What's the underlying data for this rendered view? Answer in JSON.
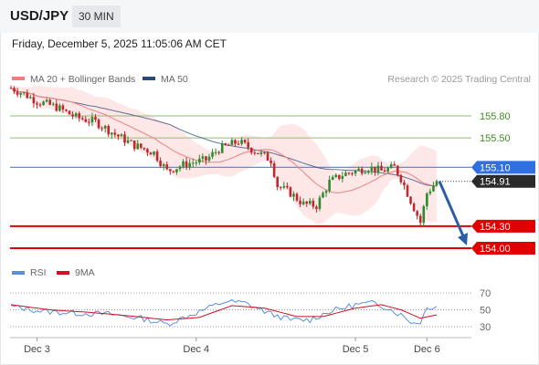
{
  "header": {
    "pair": "USD/JPY",
    "timeframe": "30 MIN"
  },
  "datetime": "Friday, December 5, 2025 11:05:06 AM CET",
  "legend": {
    "bb_label": "MA 20 + Bollinger Bands",
    "ma50_label": "MA 50",
    "credit": "Research © 2025 Trading Central",
    "rsi_label": "RSI",
    "rsi_ma_label": "9MA"
  },
  "colors": {
    "candle_up": "#2e8b2e",
    "candle_down": "#c0282d",
    "ma20": "#f08080",
    "band_fill": "#fde3e3",
    "ma50": "#2a4a7b",
    "resistance": "#8dc26a",
    "support": "#e00000",
    "current": "#5b8ee0",
    "arrow": "#2b5da8",
    "price_tag": "#2b2b2b",
    "rsi": "#5b8ee0",
    "rsi_ma": "#cc1122"
  },
  "chart_data": {
    "type": "candlestick",
    "ylim": [
      153.6,
      156.5
    ],
    "y_grid_labels": [],
    "levels": [
      {
        "value": 155.8,
        "label": "155.80",
        "kind": "resistance"
      },
      {
        "value": 155.5,
        "label": "155.50",
        "kind": "resistance"
      },
      {
        "value": 155.1,
        "label": "155.10",
        "kind": "pivot"
      },
      {
        "value": 154.91,
        "label": "154.91",
        "kind": "current"
      },
      {
        "value": 154.3,
        "label": "154.30",
        "kind": "support"
      },
      {
        "value": 154.0,
        "label": "154.00",
        "kind": "support"
      }
    ],
    "x_labels": [
      "Dec 3",
      "Dec 4",
      "Dec 5",
      "Dec 6"
    ],
    "x_label_index": [
      8,
      57,
      106,
      128
    ],
    "path_keypoints": [
      [
        0,
        156.18
      ],
      [
        4,
        156.1
      ],
      [
        8,
        156.0
      ],
      [
        14,
        155.92
      ],
      [
        20,
        155.78
      ],
      [
        26,
        155.72
      ],
      [
        32,
        155.55
      ],
      [
        38,
        155.4
      ],
      [
        44,
        155.3
      ],
      [
        48,
        155.05
      ],
      [
        54,
        155.15
      ],
      [
        60,
        155.2
      ],
      [
        64,
        155.35
      ],
      [
        70,
        155.45
      ],
      [
        76,
        155.3
      ],
      [
        80,
        155.2
      ],
      [
        82,
        154.85
      ],
      [
        86,
        154.75
      ],
      [
        90,
        154.6
      ],
      [
        94,
        154.58
      ],
      [
        98,
        154.9
      ],
      [
        102,
        155.0
      ],
      [
        106,
        155.05
      ],
      [
        110,
        155.1
      ],
      [
        114,
        155.05
      ],
      [
        118,
        155.1
      ],
      [
        120,
        154.95
      ],
      [
        122,
        154.75
      ],
      [
        124,
        154.55
      ],
      [
        126,
        154.35
      ],
      [
        128,
        154.75
      ],
      [
        131,
        154.91
      ]
    ],
    "candle_count": 132,
    "rsi": {
      "ylim": [
        20,
        80
      ],
      "levels": [
        70,
        50,
        30
      ],
      "keypoints": [
        [
          0,
          54
        ],
        [
          10,
          48
        ],
        [
          20,
          46
        ],
        [
          30,
          45
        ],
        [
          40,
          40
        ],
        [
          48,
          33
        ],
        [
          56,
          45
        ],
        [
          66,
          60
        ],
        [
          72,
          58
        ],
        [
          80,
          45
        ],
        [
          86,
          38
        ],
        [
          92,
          38
        ],
        [
          98,
          48
        ],
        [
          106,
          56
        ],
        [
          112,
          58
        ],
        [
          116,
          52
        ],
        [
          120,
          44
        ],
        [
          124,
          34
        ],
        [
          126,
          36
        ],
        [
          128,
          52
        ],
        [
          131,
          55
        ]
      ],
      "ma_keypoints": [
        [
          0,
          56
        ],
        [
          12,
          50
        ],
        [
          24,
          47
        ],
        [
          36,
          43
        ],
        [
          48,
          38
        ],
        [
          58,
          41
        ],
        [
          68,
          55
        ],
        [
          78,
          52
        ],
        [
          88,
          42
        ],
        [
          96,
          42
        ],
        [
          106,
          52
        ],
        [
          114,
          56
        ],
        [
          120,
          50
        ],
        [
          126,
          40
        ],
        [
          131,
          44
        ]
      ]
    }
  }
}
